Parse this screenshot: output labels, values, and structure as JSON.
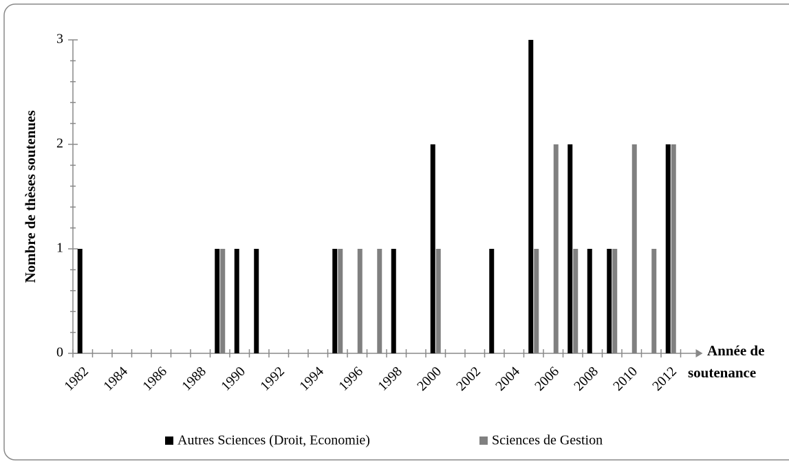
{
  "chart_data": {
    "type": "bar",
    "y_label": "Nombre de thèses soutenues",
    "x_label": [
      "Année de",
      "soutenance"
    ],
    "categories": [
      "1982",
      null,
      "1984",
      null,
      "1986",
      null,
      "1988",
      null,
      "1990",
      null,
      "1992",
      null,
      "1994",
      null,
      "1996",
      null,
      "1998",
      null,
      "2000",
      null,
      "2002",
      null,
      "2004",
      null,
      "2006",
      null,
      "2008",
      null,
      "2010",
      null,
      "2012"
    ],
    "series": [
      {
        "name": "Autres Sciences (Droit, Economie)",
        "color": "#000000",
        "values": [
          1,
          0,
          0,
          0,
          0,
          0,
          0,
          1,
          1,
          1,
          0,
          0,
          0,
          1,
          0,
          0,
          1,
          0,
          2,
          0,
          0,
          1,
          0,
          3,
          0,
          2,
          1,
          1,
          0,
          0,
          2
        ]
      },
      {
        "name": "Sciences de Gestion",
        "color": "#808080",
        "values": [
          0,
          0,
          0,
          0,
          0,
          0,
          0,
          1,
          0,
          0,
          0,
          0,
          0,
          1,
          1,
          1,
          0,
          0,
          1,
          0,
          0,
          0,
          0,
          1,
          2,
          1,
          0,
          1,
          2,
          1,
          2
        ]
      }
    ],
    "ylim": [
      0,
      3
    ],
    "yticks": [
      0,
      1,
      2,
      3
    ],
    "legend": "bottom"
  }
}
